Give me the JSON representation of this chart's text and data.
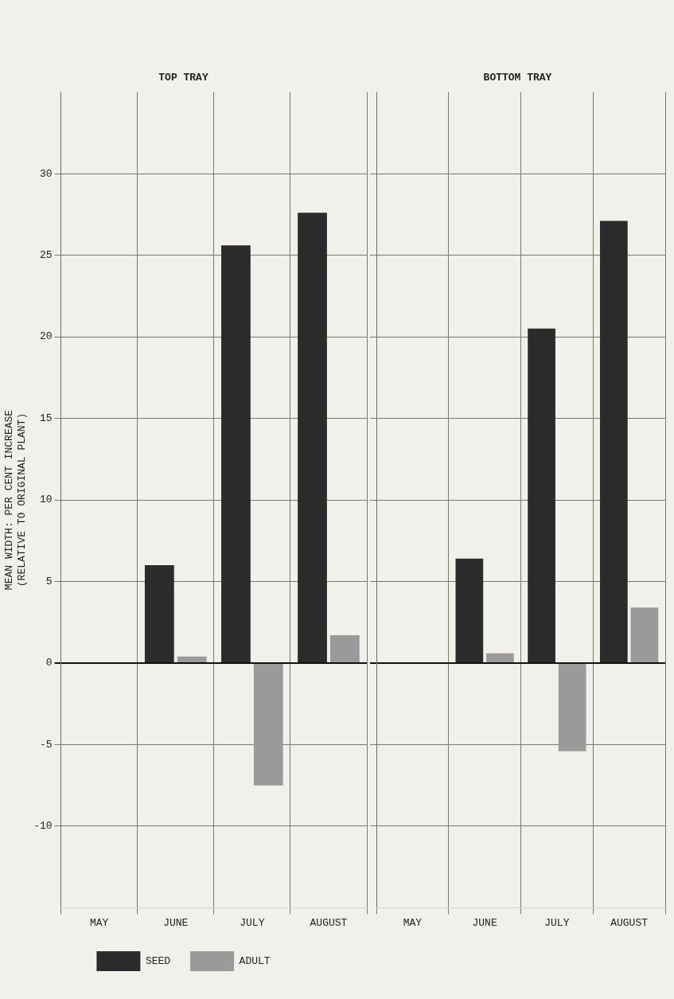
{
  "chart_data": [
    {
      "type": "bar",
      "title": "TOP TRAY",
      "ylabel": "MEAN WIDTH: PER CENT INCREASE\n(RELATIVE TO ORIGINAL PLANT)",
      "categories": [
        "MAY",
        "JUNE",
        "JULY",
        "AUGUST"
      ],
      "series": [
        {
          "name": "SEED",
          "color": "#2b2b2b",
          "values": [
            null,
            6.0,
            25.6,
            27.6
          ]
        },
        {
          "name": "ADULT",
          "color": "#9a9a9a",
          "values": [
            null,
            0.4,
            -7.5,
            1.7
          ]
        }
      ],
      "ylim": [
        -15,
        35
      ],
      "yticks": [
        -10,
        -5,
        0,
        5,
        10,
        15,
        20,
        25,
        30
      ],
      "grid": true,
      "legend": "bottom"
    },
    {
      "type": "bar",
      "title": "BOTTOM TRAY",
      "categories": [
        "MAY",
        "JUNE",
        "JULY",
        "AUGUST"
      ],
      "series": [
        {
          "color": "#2b2b2b",
          "values": [
            null,
            6.4,
            20.5,
            27.1
          ]
        },
        {
          "color": "#9a9a9a",
          "values": [
            null,
            0.6,
            -5.4,
            3.4
          ]
        }
      ],
      "ylim": [
        -15,
        35
      ],
      "yticks": [
        -10,
        -5,
        0,
        5,
        10,
        15,
        20,
        25,
        30
      ],
      "grid": true,
      "tick_labels": "x"
    }
  ]
}
